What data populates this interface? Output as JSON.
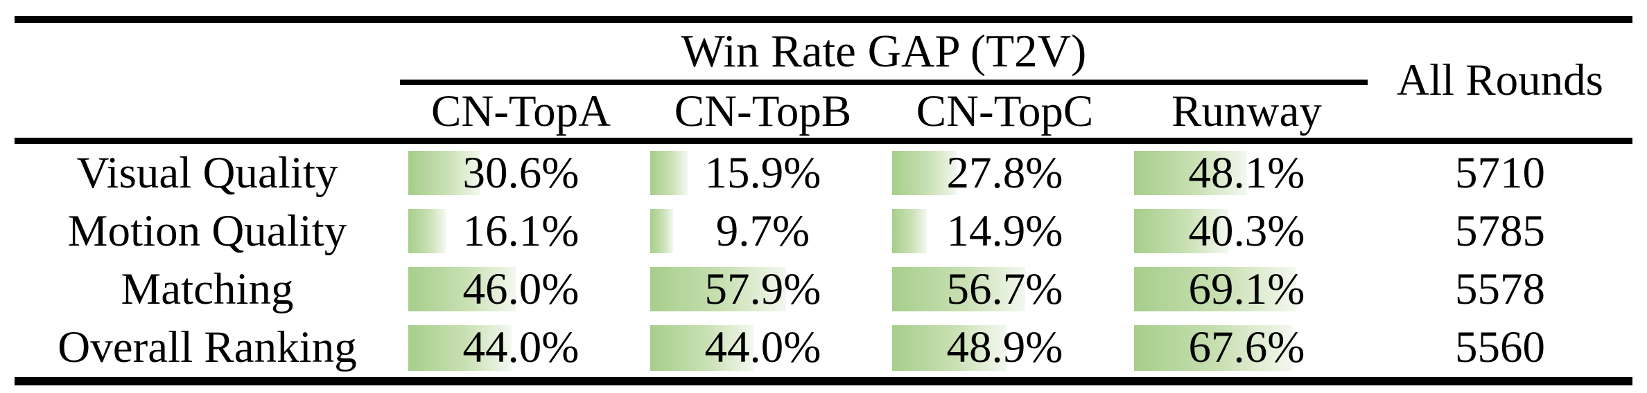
{
  "table": {
    "title": "Win Rate GAP (T2V)",
    "all_rounds_header": "All Rounds",
    "columns": [
      {
        "label": "CN-TopA"
      },
      {
        "label": "CN-TopB"
      },
      {
        "label": "CN-TopC"
      },
      {
        "label": "Runway"
      }
    ],
    "rows": [
      {
        "label": "Visual Quality",
        "cells": [
          {
            "display": "30.6%",
            "pct": 30.6
          },
          {
            "display": "15.9%",
            "pct": 15.9
          },
          {
            "display": "27.8%",
            "pct": 27.8
          },
          {
            "display": "48.1%",
            "pct": 48.1
          }
        ],
        "all_rounds": "5710"
      },
      {
        "label": "Motion Quality",
        "cells": [
          {
            "display": "16.1%",
            "pct": 16.1
          },
          {
            "display": "9.7%",
            "pct": 9.7
          },
          {
            "display": "14.9%",
            "pct": 14.9
          },
          {
            "display": "40.3%",
            "pct": 40.3
          }
        ],
        "all_rounds": "5785"
      },
      {
        "label": "Matching",
        "cells": [
          {
            "display": "46.0%",
            "pct": 46.0
          },
          {
            "display": "57.9%",
            "pct": 57.9
          },
          {
            "display": "56.7%",
            "pct": 56.7
          },
          {
            "display": "69.1%",
            "pct": 69.1
          }
        ],
        "all_rounds": "5578"
      },
      {
        "label": "Overall Ranking",
        "cells": [
          {
            "display": "44.0%",
            "pct": 44.0
          },
          {
            "display": "44.0%",
            "pct": 44.0
          },
          {
            "display": "48.9%",
            "pct": 48.9
          },
          {
            "display": "67.6%",
            "pct": 67.6
          }
        ],
        "all_rounds": "5560"
      }
    ],
    "colors": {
      "bar_gradient_start": "#a6ce8c",
      "bar_gradient_end": "#f3f8ef",
      "rule": "#000000",
      "text": "#000000",
      "background": "#ffffff"
    }
  },
  "chart_data": {
    "type": "table",
    "title": "Win Rate GAP (T2V)",
    "columns": [
      "CN-TopA",
      "CN-TopB",
      "CN-TopC",
      "Runway",
      "All Rounds"
    ],
    "row_labels": [
      "Visual Quality",
      "Motion Quality",
      "Matching",
      "Overall Ranking"
    ],
    "win_rate_gap_pct": [
      [
        30.6,
        15.9,
        27.8,
        48.1
      ],
      [
        16.1,
        9.7,
        14.9,
        40.3
      ],
      [
        46.0,
        57.9,
        56.7,
        69.1
      ],
      [
        44.0,
        44.0,
        48.9,
        67.6
      ]
    ],
    "all_rounds": [
      5710,
      5785,
      5578,
      5560
    ],
    "bar_scale": "data bars proportional 0-100% of cell track width",
    "layout_hints": "booktabs rules: thick top/mid/bottom, thin cmidrule spanning the four T2V columns"
  }
}
